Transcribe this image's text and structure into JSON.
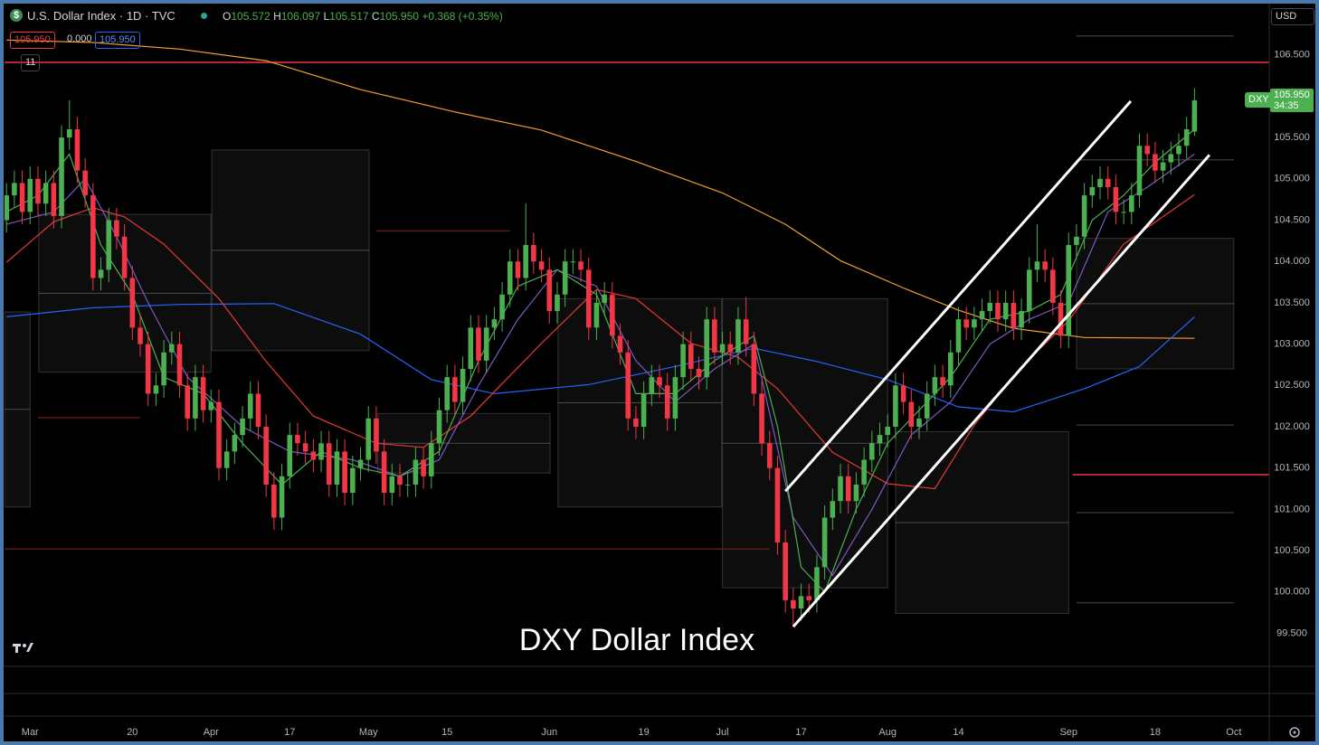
{
  "header": {
    "title": "U.S. Dollar Index · 1D · TVC",
    "ohlc_labels": [
      "O",
      "H",
      "L",
      "C"
    ],
    "ohlc_values": [
      "105.572",
      "106.097",
      "105.517",
      "105.950"
    ],
    "change": "+0.368 (+0.35%)",
    "inputs": [
      "105.950",
      "0.000",
      "105.950"
    ],
    "count": "11",
    "currency": "USD"
  },
  "price_tag": {
    "symbol": "DXY",
    "price": "105.950",
    "countdown": "34:35"
  },
  "caption": "DXY Dollar Index",
  "chart_data": {
    "type": "candlestick",
    "up_color": "#4caf50",
    "down_color": "#f23645",
    "xlim": [
      -0.25,
      160.5
    ],
    "ylim": [
      99.1,
      107.11
    ],
    "xticks": [
      {
        "value": 3,
        "label": "Mar"
      },
      {
        "value": 16,
        "label": "20"
      },
      {
        "value": 26,
        "label": "Apr"
      },
      {
        "value": 36,
        "label": "17"
      },
      {
        "value": 46,
        "label": "May"
      },
      {
        "value": 56,
        "label": "15"
      },
      {
        "value": 69,
        "label": "Jun"
      },
      {
        "value": 81,
        "label": "19"
      },
      {
        "value": 91,
        "label": "Jul"
      },
      {
        "value": 101,
        "label": "17"
      },
      {
        "value": 112,
        "label": "Aug"
      },
      {
        "value": 121,
        "label": "14"
      },
      {
        "value": 135,
        "label": "Sep"
      },
      {
        "value": 146,
        "label": "18"
      },
      {
        "value": 156,
        "label": "Oct"
      }
    ],
    "yticks": [
      {
        "value": 99.5,
        "label": "99.500"
      },
      {
        "value": 100,
        "label": "100.000"
      },
      {
        "value": 100.5,
        "label": "100.500"
      },
      {
        "value": 101,
        "label": "101.000"
      },
      {
        "value": 101.5,
        "label": "101.500"
      },
      {
        "value": 102,
        "label": "102.000"
      },
      {
        "value": 102.5,
        "label": "102.500"
      },
      {
        "value": 103,
        "label": "103.000"
      },
      {
        "value": 103.5,
        "label": "103.500"
      },
      {
        "value": 104,
        "label": "104.000"
      },
      {
        "value": 104.5,
        "label": "104.500"
      },
      {
        "value": 105,
        "label": "105.000"
      },
      {
        "value": 105.5,
        "label": "105.500"
      },
      {
        "value": 106,
        "label": "106.000"
      },
      {
        "value": 106.5,
        "label": "106.500"
      }
    ],
    "open": [
      104.5,
      104.8,
      104.95,
      104.6,
      105.0,
      104.7,
      104.95,
      104.55,
      105.5,
      105.6,
      105.1,
      104.8,
      103.8,
      103.9,
      104.5,
      104.3,
      103.8,
      103.2,
      103.0,
      102.4,
      102.5,
      102.9,
      103.0,
      102.5,
      102.1,
      102.6,
      102.2,
      102.3,
      101.5,
      101.7,
      101.9,
      102.1,
      102.4,
      102.0,
      101.3,
      100.9,
      101.4,
      101.9,
      101.8,
      101.7,
      101.6,
      101.8,
      101.3,
      101.7,
      101.2,
      101.5,
      101.6,
      102.1,
      101.7,
      101.2,
      101.4,
      101.3,
      101.3,
      101.6,
      101.4,
      101.8,
      102.2,
      102.6,
      102.3,
      102.7,
      103.2,
      102.8,
      103.2,
      103.3,
      103.6,
      104.0,
      103.8,
      104.2,
      104.0,
      103.9,
      103.4,
      103.6,
      104.0,
      104.0,
      103.9,
      103.2,
      103.5,
      103.6,
      103.1,
      102.9,
      102.1,
      102.0,
      102.4,
      102.6,
      102.5,
      102.1,
      102.6,
      103.0,
      102.7,
      102.6,
      103.3,
      102.9,
      103.0,
      102.9,
      103.3,
      103.0,
      102.4,
      101.8,
      101.5,
      100.6,
      99.9,
      99.8,
      99.95,
      99.9,
      100.3,
      100.9,
      101.1,
      101.4,
      101.1,
      101.3,
      101.6,
      101.8,
      101.9,
      102.0,
      102.5,
      102.3,
      102.0,
      102.1,
      102.4,
      102.6,
      102.5,
      102.9,
      103.3,
      103.2,
      103.3,
      103.4,
      103.5,
      103.3,
      103.5,
      103.2,
      103.4,
      103.9,
      104.0,
      103.9,
      103.5,
      103.1,
      104.2,
      104.3,
      104.8,
      104.9,
      105.0,
      104.9,
      104.6,
      104.6,
      104.8,
      105.4,
      105.3,
      105.1,
      105.2,
      105.3,
      105.4,
      105.572
    ],
    "high": [
      104.95,
      105.1,
      105.1,
      105.15,
      105.15,
      105.1,
      105.1,
      105.65,
      105.95,
      105.75,
      105.25,
      104.95,
      104.05,
      104.65,
      104.65,
      104.45,
      103.95,
      103.35,
      103.15,
      102.65,
      103.05,
      103.15,
      103.15,
      102.65,
      102.75,
      102.75,
      102.45,
      102.45,
      101.85,
      102.05,
      102.25,
      102.55,
      102.55,
      102.15,
      101.45,
      101.55,
      102.05,
      102.05,
      101.95,
      101.85,
      101.95,
      101.95,
      101.85,
      101.85,
      101.65,
      101.75,
      102.25,
      102.25,
      101.85,
      101.55,
      101.55,
      101.45,
      101.75,
      101.75,
      101.95,
      102.35,
      102.75,
      102.75,
      102.85,
      103.35,
      103.35,
      103.35,
      103.45,
      103.75,
      104.15,
      104.15,
      104.7,
      104.35,
      104.15,
      104.05,
      103.75,
      104.15,
      104.15,
      104.15,
      104.05,
      103.65,
      103.75,
      103.75,
      103.25,
      103.05,
      102.25,
      102.55,
      102.75,
      102.75,
      102.65,
      102.75,
      103.15,
      103.15,
      102.85,
      103.45,
      103.45,
      103.15,
      103.15,
      103.45,
      103.57,
      103.15,
      102.55,
      101.95,
      101.65,
      100.75,
      100.05,
      100.1,
      100.1,
      100.45,
      101.05,
      101.25,
      101.55,
      101.55,
      101.45,
      101.75,
      101.95,
      102.05,
      102.15,
      102.65,
      102.65,
      102.45,
      102.25,
      102.55,
      102.75,
      102.75,
      103.05,
      103.45,
      103.45,
      103.45,
      103.55,
      103.65,
      103.65,
      103.65,
      103.65,
      103.55,
      104.05,
      104.45,
      104.15,
      104.05,
      103.65,
      104.35,
      104.45,
      104.95,
      105.05,
      105.15,
      105.15,
      105.05,
      104.75,
      104.95,
      105.55,
      105.55,
      105.45,
      105.35,
      105.45,
      105.55,
      105.75,
      106.097
    ],
    "low": [
      104.35,
      104.65,
      104.45,
      104.45,
      104.55,
      104.55,
      104.4,
      104.4,
      105.35,
      104.95,
      104.65,
      103.65,
      103.65,
      103.75,
      104.15,
      103.65,
      103.05,
      102.85,
      102.25,
      102.25,
      102.35,
      102.75,
      102.35,
      101.95,
      101.95,
      102.05,
      102.05,
      101.35,
      101.35,
      101.55,
      101.75,
      101.95,
      101.85,
      101.15,
      100.75,
      100.75,
      101.25,
      101.65,
      101.55,
      101.45,
      101.45,
      101.15,
      101.15,
      101.05,
      101.05,
      101.35,
      101.45,
      101.55,
      101.05,
      101.05,
      101.15,
      101.15,
      101.15,
      101.25,
      101.25,
      101.65,
      102.05,
      102.15,
      102.15,
      102.55,
      102.65,
      102.65,
      103.05,
      103.15,
      103.45,
      103.65,
      103.65,
      103.85,
      103.75,
      103.25,
      103.25,
      103.45,
      103.85,
      103.75,
      103.05,
      103.05,
      103.35,
      102.95,
      102.75,
      101.95,
      101.85,
      101.85,
      102.25,
      102.35,
      101.95,
      101.95,
      102.45,
      102.55,
      102.45,
      102.45,
      102.75,
      102.75,
      102.75,
      102.75,
      102.85,
      102.25,
      101.65,
      101.35,
      100.45,
      99.75,
      99.58,
      99.65,
      99.75,
      99.75,
      100.15,
      100.75,
      100.95,
      100.95,
      100.95,
      101.15,
      101.45,
      101.65,
      101.75,
      101.85,
      102.15,
      101.85,
      101.85,
      101.95,
      102.25,
      102.35,
      102.35,
      102.75,
      103.05,
      103.05,
      103.15,
      103.25,
      103.15,
      103.15,
      103.05,
      103.05,
      103.25,
      103.75,
      103.75,
      103.35,
      102.95,
      102.95,
      104.05,
      104.15,
      104.65,
      104.75,
      104.75,
      104.45,
      104.45,
      104.45,
      104.65,
      105.15,
      104.95,
      104.95,
      105.05,
      105.15,
      105.25,
      105.517
    ],
    "close": [
      104.8,
      104.95,
      104.6,
      105.0,
      104.7,
      104.95,
      104.55,
      105.5,
      105.6,
      105.1,
      104.8,
      103.8,
      103.9,
      104.5,
      104.3,
      103.8,
      103.2,
      103.0,
      102.4,
      102.5,
      102.9,
      103.0,
      102.5,
      102.1,
      102.6,
      102.2,
      102.3,
      101.5,
      101.7,
      101.9,
      102.1,
      102.4,
      102.0,
      101.3,
      100.9,
      101.4,
      101.9,
      101.8,
      101.7,
      101.6,
      101.8,
      101.3,
      101.7,
      101.2,
      101.5,
      101.6,
      102.1,
      101.7,
      101.2,
      101.4,
      101.3,
      101.3,
      101.6,
      101.4,
      101.8,
      102.2,
      102.6,
      102.3,
      102.7,
      103.2,
      102.8,
      103.2,
      103.3,
      103.6,
      104.0,
      103.8,
      104.2,
      104.0,
      103.9,
      103.4,
      103.6,
      104.0,
      104.0,
      103.9,
      103.2,
      103.5,
      103.6,
      103.1,
      102.9,
      102.1,
      102.0,
      102.4,
      102.6,
      102.5,
      102.1,
      102.6,
      103.0,
      102.7,
      102.6,
      103.3,
      102.9,
      103.0,
      102.9,
      103.3,
      103.0,
      102.4,
      101.8,
      101.5,
      100.6,
      99.9,
      99.8,
      99.95,
      99.9,
      100.3,
      100.9,
      101.1,
      101.4,
      101.1,
      101.3,
      101.6,
      101.8,
      101.9,
      102.0,
      102.5,
      102.3,
      102.0,
      102.1,
      102.4,
      102.6,
      102.5,
      102.9,
      103.3,
      103.2,
      103.3,
      103.4,
      103.5,
      103.3,
      103.5,
      103.2,
      103.4,
      103.9,
      104.0,
      103.9,
      103.5,
      103.1,
      104.2,
      104.3,
      104.8,
      104.9,
      105.0,
      104.9,
      104.6,
      104.6,
      104.8,
      105.4,
      105.3,
      105.1,
      105.2,
      105.3,
      105.4,
      105.6,
      105.95
    ],
    "overlays": [
      {
        "color": "#f0a030",
        "x": [
          0,
          11,
          22,
          33,
          45,
          57,
          68,
          80,
          91,
          99,
          106,
          114,
          121,
          128,
          137,
          151
        ],
        "values": [
          106.68,
          106.65,
          106.57,
          106.43,
          106.08,
          105.81,
          105.59,
          105.21,
          104.83,
          104.45,
          104.01,
          103.68,
          103.41,
          103.19,
          103.08,
          103.07
        ]
      },
      {
        "color": "#2962ff",
        "x": [
          0,
          11,
          22,
          34,
          45,
          54,
          62,
          74,
          85,
          95,
          103,
          112,
          121,
          128,
          137,
          144,
          151
        ],
        "values": [
          103.33,
          103.44,
          103.48,
          103.49,
          103.12,
          102.57,
          102.4,
          102.51,
          102.73,
          102.95,
          102.79,
          102.57,
          102.24,
          102.18,
          102.46,
          102.73,
          103.33
        ]
      },
      {
        "color": "#e53935",
        "x": [
          0,
          6,
          11,
          15,
          20,
          27,
          33,
          39,
          47,
          53,
          59,
          68,
          75,
          80,
          87,
          93,
          98,
          105,
          112,
          118,
          123,
          129,
          135,
          142,
          151
        ],
        "values": [
          103.99,
          104.48,
          104.65,
          104.54,
          104.21,
          103.55,
          102.79,
          102.13,
          101.8,
          101.75,
          102.13,
          103.01,
          103.66,
          103.55,
          103.01,
          102.84,
          102.46,
          101.69,
          101.31,
          101.25,
          102.02,
          102.73,
          103.28,
          104.21,
          104.81
        ]
      },
      {
        "color": "#7e57c2",
        "x": [
          0,
          6,
          10,
          14,
          18,
          23,
          30,
          36,
          44,
          50,
          55,
          60,
          65,
          70,
          75,
          80,
          85,
          90,
          95,
          100,
          105,
          110,
          115,
          120,
          125,
          130,
          135,
          140,
          145,
          151
        ],
        "values": [
          104.45,
          104.6,
          105.0,
          104.3,
          103.5,
          102.6,
          102.0,
          101.7,
          101.6,
          101.4,
          101.6,
          102.5,
          103.3,
          103.9,
          103.7,
          102.8,
          102.3,
          102.7,
          103.0,
          100.9,
          100.2,
          101.0,
          101.9,
          102.3,
          103.0,
          103.3,
          103.5,
          104.6,
          104.9,
          105.3
        ]
      },
      {
        "color": "#4caf50",
        "x": [
          0,
          4,
          8,
          12,
          16,
          20,
          25,
          30,
          35,
          40,
          45,
          50,
          55,
          60,
          65,
          70,
          75,
          80,
          85,
          90,
          95,
          98,
          101,
          104,
          108,
          112,
          116,
          120,
          125,
          130,
          134,
          138,
          142,
          146,
          151
        ],
        "values": [
          104.6,
          104.8,
          105.3,
          104.2,
          103.6,
          102.6,
          102.4,
          101.8,
          101.3,
          101.7,
          101.5,
          101.4,
          101.7,
          102.8,
          103.7,
          103.9,
          103.6,
          102.4,
          102.4,
          102.8,
          103.1,
          102.0,
          100.3,
          100.0,
          101.0,
          101.8,
          102.2,
          102.6,
          103.3,
          103.4,
          103.6,
          104.5,
          104.8,
          105.2,
          105.6
        ]
      }
    ],
    "boxes": [
      {
        "x": [
          -0.25,
          3
        ],
        "y": [
          101.03,
          103.39
        ]
      },
      {
        "x": [
          4.1,
          26
        ],
        "y": [
          102.66,
          104.57
        ]
      },
      {
        "x": [
          26.1,
          46.1
        ],
        "y": [
          102.92,
          105.35
        ]
      },
      {
        "x": [
          47.2,
          69.1
        ],
        "y": [
          101.44,
          102.16
        ]
      },
      {
        "x": [
          70.1,
          90.9
        ],
        "y": [
          101.03,
          103.55
        ]
      },
      {
        "x": [
          91,
          112
        ],
        "y": [
          100.05,
          103.55
        ]
      },
      {
        "x": [
          113,
          135
        ],
        "y": [
          99.74,
          101.94
        ]
      },
      {
        "x": [
          136,
          156
        ],
        "y": [
          102.7,
          104.28
        ]
      }
    ],
    "hlines": [
      {
        "y": 106.41,
        "x": [
          -0.25,
          160.5
        ],
        "color": "#f23645"
      },
      {
        "y": 101.42,
        "x": [
          135.5,
          160.5
        ],
        "color": "#f23645"
      },
      {
        "y": 100.52,
        "x": [
          -0.25,
          97
        ],
        "color": "#5a1a1a"
      },
      {
        "y": 104.37,
        "x": [
          47,
          64
        ],
        "color": "#5a1a1a"
      },
      {
        "y": 102.11,
        "x": [
          4,
          17
        ],
        "color": "#5a1a1a"
      },
      {
        "y": 106.73,
        "x": [
          136,
          156
        ],
        "color": "#333333"
      },
      {
        "y": 105.23,
        "x": [
          136,
          156
        ],
        "color": "#333333"
      },
      {
        "y": 102.02,
        "x": [
          136,
          156
        ],
        "color": "#333333"
      },
      {
        "y": 100.96,
        "x": [
          136,
          156
        ],
        "color": "#333333"
      },
      {
        "y": 99.87,
        "x": [
          136,
          156
        ],
        "color": "#333333"
      }
    ],
    "trendlines": [
      {
        "x": [
          99,
          142.9
        ],
        "y": [
          101.22,
          105.94
        ],
        "color": "#ffffff"
      },
      {
        "x": [
          100,
          152.9
        ],
        "y": [
          99.58,
          105.29
        ],
        "color": "#ffffff"
      }
    ]
  }
}
